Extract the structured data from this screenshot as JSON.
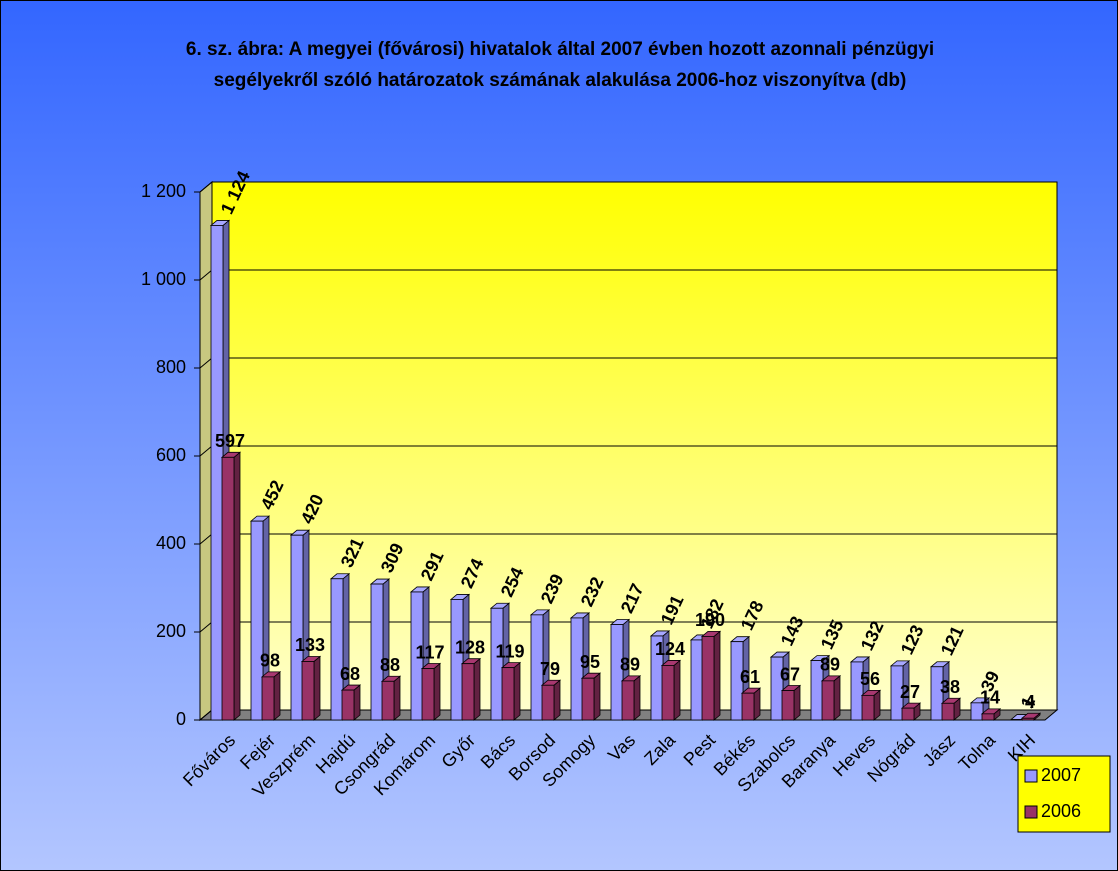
{
  "chart_data": {
    "type": "bar",
    "title": "6. sz. ábra: A megyei (fővárosi) hivatalok által 2007 évben hozott azonnali pénzügyi segélyekről szóló határozatok számának alakulása 2006-hoz viszonyítva (db)",
    "categories": [
      "Főváros",
      "Fejér",
      "Veszprém",
      "Hajdú",
      "Csongrád",
      "Komárom",
      "Győr",
      "Bács",
      "Borsod",
      "Somogy",
      "Vas",
      "Zala",
      "Pest",
      "Békés",
      "Szabolcs",
      "Baranya",
      "Heves",
      "Nógrád",
      "Jász",
      "Tolna",
      "KIH"
    ],
    "series": [
      {
        "name": "2007",
        "color": "#9999ff",
        "values": [
          1124,
          452,
          420,
          321,
          309,
          291,
          274,
          254,
          239,
          232,
          217,
          191,
          182,
          178,
          143,
          135,
          132,
          123,
          121,
          39,
          1
        ],
        "value_labels": [
          "1 124",
          "452",
          "420",
          "321",
          "309",
          "291",
          "274",
          "254",
          "239",
          "232",
          "217",
          "191",
          "182",
          "178",
          "143",
          "135",
          "132",
          "123",
          "121",
          "39",
          "1"
        ]
      },
      {
        "name": "2006",
        "color": "#993366",
        "values": [
          597,
          98,
          133,
          68,
          88,
          117,
          128,
          119,
          79,
          95,
          89,
          124,
          190,
          61,
          67,
          89,
          56,
          27,
          38,
          14,
          4
        ]
      }
    ],
    "ylim": [
      0,
      1200
    ],
    "yticks": [
      0,
      200,
      400,
      600,
      800,
      {
        "value": 1000,
        "label": "1 000"
      },
      {
        "value": 1200,
        "label": "1 200"
      }
    ],
    "grid": true,
    "legend": "bottom-right"
  }
}
